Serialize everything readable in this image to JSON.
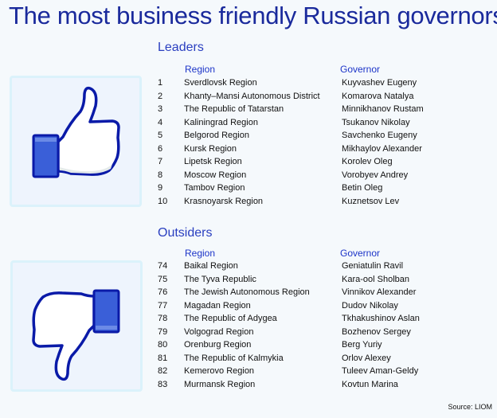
{
  "title": "The most business friendly Russian governors",
  "leaders": {
    "heading": "Leaders",
    "col_region": "Region",
    "col_governor": "Governor",
    "icon": "thumbs-up-icon",
    "rows": [
      {
        "rank": "1",
        "region": "Sverdlovsk Region",
        "governor": "Kuyvashev Eugeny"
      },
      {
        "rank": "2",
        "region": "Khanty–Mansi Autonomous District",
        "governor": "Komarova Natalya"
      },
      {
        "rank": "3",
        "region": "The Republic of Tatarstan",
        "governor": "Minnikhanov Rustam"
      },
      {
        "rank": "4",
        "region": "Kaliningrad Region",
        "governor": "Tsukanov Nikolay"
      },
      {
        "rank": "5",
        "region": "Belgorod Region",
        "governor": "Savchenko Eugeny"
      },
      {
        "rank": "6",
        "region": "Kursk Region",
        "governor": "Mikhaylov Alexander"
      },
      {
        "rank": "7",
        "region": "Lipetsk Region",
        "governor": "Korolev Oleg"
      },
      {
        "rank": "8",
        "region": "Moscow Region",
        "governor": "Vorobyev Andrey"
      },
      {
        "rank": "9",
        "region": "Tambov Region",
        "governor": "Betin Oleg"
      },
      {
        "rank": "10",
        "region": "Krasnoyarsk Region",
        "governor": "Kuznetsov Lev"
      }
    ]
  },
  "outsiders": {
    "heading": "Outsiders",
    "col_region": "Region",
    "col_governor": "Governor",
    "icon": "thumbs-down-icon",
    "rows": [
      {
        "rank": "74",
        "region": "Baikal Region",
        "governor": "Geniatulin Ravil"
      },
      {
        "rank": "75",
        "region": "The Tyva Republic",
        "governor": "Kara-ool Sholban"
      },
      {
        "rank": "76",
        "region": "The Jewish Autonomous Region",
        "governor": "Vinnikov Alexander"
      },
      {
        "rank": "77",
        "region": "Magadan Region",
        "governor": "Dudov Nikolay"
      },
      {
        "rank": "78",
        "region": "The Republic of Adygea",
        "governor": "Tkhakushinov Aslan"
      },
      {
        "rank": "79",
        "region": "Volgograd Region",
        "governor": "Bozhenov Sergey"
      },
      {
        "rank": "80",
        "region": "Orenburg Region",
        "governor": "Berg Yuriy"
      },
      {
        "rank": "81",
        "region": "The Republic of Kalmykia",
        "governor": "Orlov Alexey"
      },
      {
        "rank": "82",
        "region": "Kemerovo Region",
        "governor": "Tuleev Aman-Geldy"
      },
      {
        "rank": "83",
        "region": "Murmansk Region",
        "governor": "Kovtun Marina"
      }
    ]
  },
  "source": "Source: LIOM",
  "colors": {
    "title": "#1a2a9c",
    "accent": "#2a3fc0",
    "cuff": "#3a5fd8",
    "outline": "#0a1aa8",
    "box_border": "#dbf2fb"
  }
}
